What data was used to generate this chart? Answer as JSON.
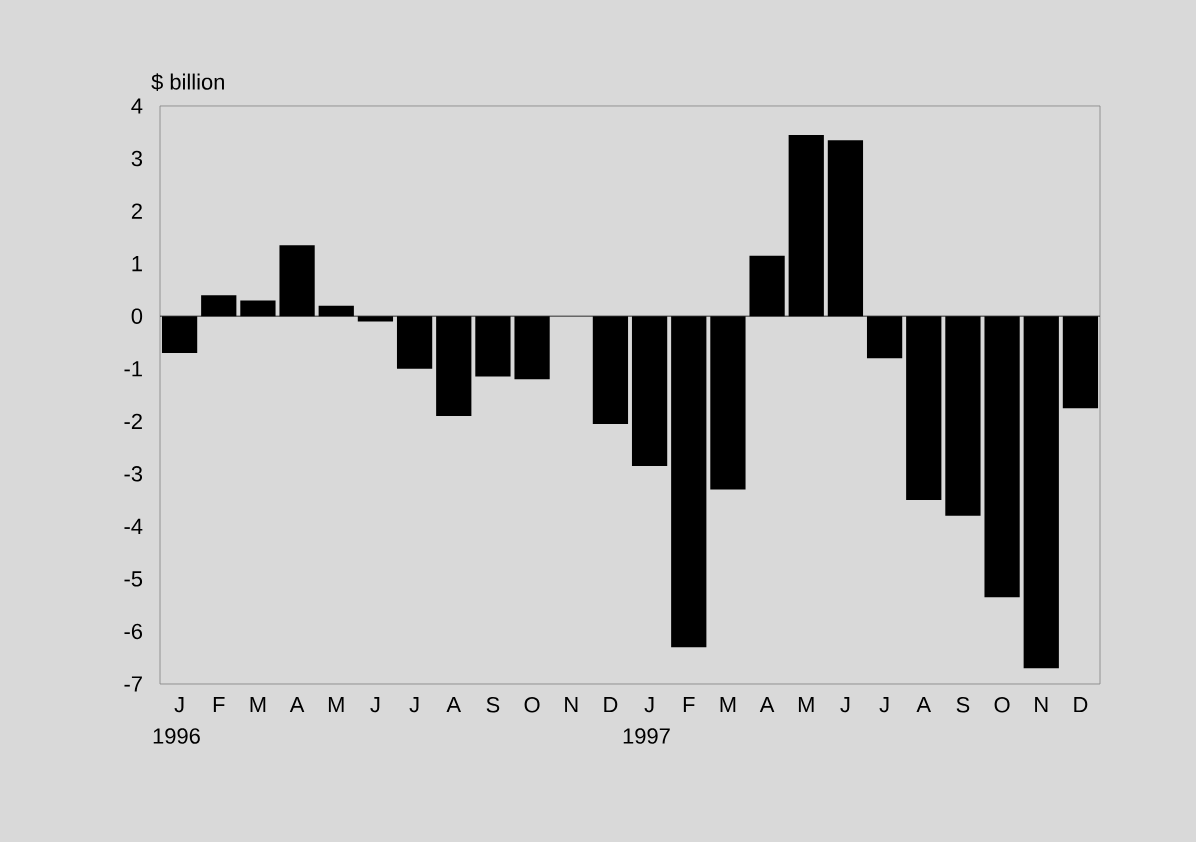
{
  "chart_data": {
    "type": "bar",
    "ylabel": "$ billion",
    "categories": [
      "J",
      "F",
      "M",
      "A",
      "M",
      "J",
      "J",
      "A",
      "S",
      "O",
      "N",
      "D",
      "J",
      "F",
      "M",
      "A",
      "M",
      "J",
      "J",
      "A",
      "S",
      "O",
      "N",
      "D"
    ],
    "values": [
      -0.7,
      0.4,
      0.3,
      1.35,
      0.2,
      -0.1,
      -1.0,
      -1.9,
      -1.15,
      -1.2,
      null,
      -2.05,
      -2.85,
      -6.3,
      -3.3,
      1.15,
      3.45,
      3.35,
      -0.8,
      -3.5,
      -3.8,
      -5.35,
      -6.7,
      -1.75
    ],
    "color": "#000000",
    "ylim": [
      -7,
      4
    ],
    "yticks": [
      -7,
      -6,
      -5,
      -4,
      -3,
      -2,
      -1,
      0,
      1,
      2,
      3,
      4
    ],
    "annotations": [
      "1996",
      "1997"
    ]
  }
}
